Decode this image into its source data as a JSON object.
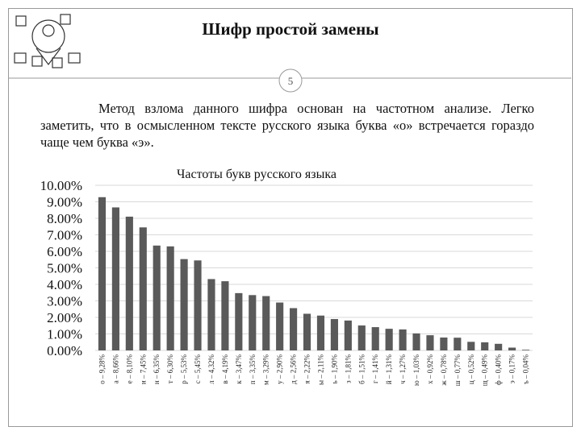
{
  "slide": {
    "title": "Шифр простой замены",
    "page_number": "5",
    "paragraph": "Метод взлома данного шифра основан на частотном анализе. Легко заметить, что в осмысленном тексте русского языка буква «о» встречается гораздо чаще чем буква «э»."
  },
  "chart_data": {
    "type": "bar",
    "title": "Частоты букв русского языка",
    "categories": [
      "о – 9,28%",
      "а – 8,66%",
      "е – 8,10%",
      "и – 7,45%",
      "н – 6,35%",
      "т – 6,30%",
      "р – 5,53%",
      "с – 5,45%",
      "л – 4,32%",
      "в – 4,19%",
      "к – 3,47%",
      "п – 3,35%",
      "м – 3,29%",
      "у – 2,90%",
      "д – 2,56%",
      "я – 2,22%",
      "ы – 2,11%",
      "ь – 1,90%",
      "з – 1,81%",
      "б – 1,51%",
      "г – 1,41%",
      "й – 1,31%",
      "ч – 1,27%",
      "ю – 1,03%",
      "х – 0,92%",
      "ж – 0,78%",
      "ш – 0,77%",
      "ц – 0,52%",
      "щ – 0,49%",
      "ф – 0,40%",
      "э – 0,17%",
      "ъ – 0,04%"
    ],
    "values": [
      9.28,
      8.66,
      8.1,
      7.45,
      6.35,
      6.3,
      5.53,
      5.45,
      4.32,
      4.19,
      3.47,
      3.35,
      3.29,
      2.9,
      2.56,
      2.22,
      2.11,
      1.9,
      1.81,
      1.51,
      1.41,
      1.31,
      1.27,
      1.03,
      0.92,
      0.78,
      0.77,
      0.52,
      0.49,
      0.4,
      0.17,
      0.04
    ],
    "color": "#5a5a5a",
    "ylim": [
      0,
      10
    ],
    "yticks": [
      {
        "value": 0,
        "label": "0.00%"
      },
      {
        "value": 1,
        "label": "1.00%"
      },
      {
        "value": 2,
        "label": "2.00%"
      },
      {
        "value": 3,
        "label": "3.00%"
      },
      {
        "value": 4,
        "label": "4.00%"
      },
      {
        "value": 5,
        "label": "5.00%"
      },
      {
        "value": 6,
        "label": "6.00%"
      },
      {
        "value": 7,
        "label": "7.00%"
      },
      {
        "value": 8,
        "label": "8.00%"
      },
      {
        "value": 9,
        "label": "9.00%"
      },
      {
        "value": 10,
        "label": "10.00%"
      }
    ],
    "grid": true
  }
}
